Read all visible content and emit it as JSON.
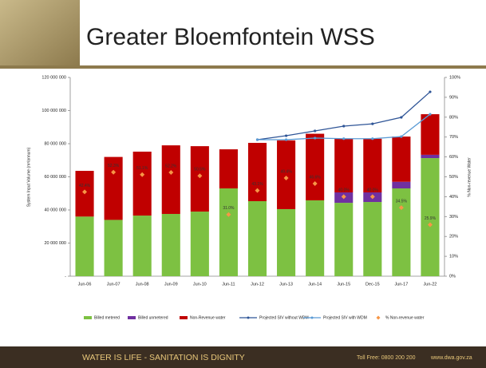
{
  "chart_data": {
    "type": "bar",
    "stacked": true,
    "title": "Greater Bloemfontein WSS",
    "y_label": "System Input Volume (m³/annum)",
    "y2_label": "% Non-revenue Water",
    "categories": [
      "Jun-06",
      "Jun-07",
      "Jun-08",
      "Jun-09",
      "Jun-10",
      "Jun-11",
      "Jun-12",
      "Jun-13",
      "Jun-14",
      "Jun-15",
      "Dec-15",
      "Jun-17",
      "Jun-22"
    ],
    "series": [
      {
        "name": "Billed metered",
        "type": "bar",
        "color": "#7dc142",
        "values": [
          36000000,
          34000000,
          36600000,
          37600000,
          39000000,
          53000000,
          45300000,
          40500000,
          45800000,
          44300000,
          44800000,
          53000000,
          71300000
        ]
      },
      {
        "name": "Billed unmetered",
        "type": "bar",
        "color": "#7030a0",
        "values": [
          0,
          0,
          0,
          0,
          0,
          0,
          0,
          0,
          0,
          6300000,
          5800000,
          4000000,
          2000000
        ]
      },
      {
        "name": "Non-Revenue water",
        "type": "bar",
        "color": "#c00000",
        "values": [
          27600000,
          38000000,
          38600000,
          41400000,
          39500000,
          23600000,
          35200000,
          41500000,
          40200000,
          32400000,
          32400000,
          27300000,
          24500000
        ]
      },
      {
        "name": "Projected SIV without WDM",
        "type": "line",
        "color": "#2f5597",
        "values": [
          null,
          null,
          null,
          null,
          null,
          null,
          82400000,
          84800000,
          87700000,
          90600000,
          92000000,
          95900000,
          111300000
        ]
      },
      {
        "name": "Projected SIV with WDM",
        "type": "line",
        "color": "#5b9bd5",
        "values": [
          null,
          null,
          null,
          null,
          null,
          null,
          82400000,
          82400000,
          83400000,
          83000000,
          83000000,
          84300000,
          97800000
        ]
      },
      {
        "name": "% Non-revenue water",
        "type": "scatter",
        "axis": "y2",
        "color": "#f79646",
        "values": [
          42.4,
          52.3,
          51.1,
          52.2,
          50.5,
          31.0,
          43.1,
          49.4,
          46.6,
          40.0,
          40.0,
          34.5,
          25.9
        ],
        "value_labels": [
          "42.4%",
          "52.3%",
          "51.1%",
          "52.2%",
          "50.5%",
          "31.0%",
          "43.1%",
          "49.4%",
          "46.6%",
          "40.0%",
          "40.0%",
          "34.5%",
          "25.9%"
        ]
      }
    ],
    "ylim": [
      0,
      120000000
    ],
    "yticks": [
      {
        "value": 0,
        "label": "-"
      },
      {
        "value": 20000000,
        "label": "20 000 000"
      },
      {
        "value": 40000000,
        "label": "40 000 000"
      },
      {
        "value": 60000000,
        "label": "60 000 000"
      },
      {
        "value": 80000000,
        "label": "80 000 000"
      },
      {
        "value": 100000000,
        "label": "100 000 000"
      },
      {
        "value": 120000000,
        "label": "120 000 000"
      }
    ],
    "y2lim": [
      0,
      100
    ],
    "y2ticks": [
      {
        "value": 0,
        "label": "0%"
      },
      {
        "value": 10,
        "label": "10%"
      },
      {
        "value": 20,
        "label": "20%"
      },
      {
        "value": 30,
        "label": "30%"
      },
      {
        "value": 40,
        "label": "40%"
      },
      {
        "value": 50,
        "label": "50%"
      },
      {
        "value": 60,
        "label": "60%"
      },
      {
        "value": 70,
        "label": "70%"
      },
      {
        "value": 80,
        "label": "80%"
      },
      {
        "value": 90,
        "label": "90%"
      },
      {
        "value": 100,
        "label": "100%"
      }
    ],
    "grid": false,
    "legend": "bottom"
  },
  "footer": {
    "slogan": "WATER IS LIFE - SANITATION IS DIGNITY",
    "phone": "Toll Free: 0800 200 200",
    "web": "www.dwa.gov.za"
  }
}
